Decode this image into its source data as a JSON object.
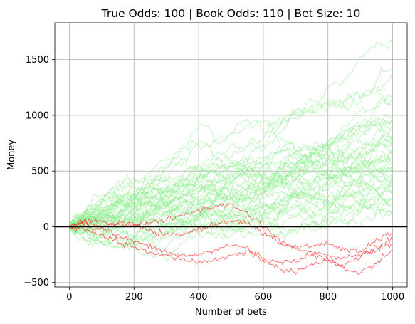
{
  "chart_data": {
    "type": "line",
    "title": "True Odds: 100 | Book Odds: 110 | Bet Size: 10",
    "xlabel": "Number of bets",
    "ylabel": "Money",
    "xlim": [
      -45,
      1045
    ],
    "ylim": [
      -540,
      1830
    ],
    "xticks": [
      0,
      200,
      400,
      600,
      800,
      1000
    ],
    "yticks": [
      -500,
      0,
      500,
      1000,
      1500
    ],
    "grid": true,
    "reference_line": {
      "y": 0,
      "color": "#000000"
    },
    "colors": {
      "profit": "#90ee90",
      "loss": "#ff0000"
    },
    "series_groups": [
      {
        "name": "",
        "color": "#90ee90",
        "count": 45,
        "final_values": [
          1700,
          1420,
          1330,
          1210,
          1150,
          1110,
          1000,
          960,
          930,
          900,
          860,
          830,
          800,
          790,
          770,
          750,
          720,
          700,
          680,
          650,
          630,
          600,
          580,
          560,
          540,
          520,
          500,
          480,
          460,
          440,
          420,
          400,
          380,
          350,
          330,
          300,
          280,
          260,
          240,
          220,
          200,
          180,
          160,
          150,
          120
        ]
      },
      {
        "name": "",
        "color": "#ff0000",
        "count": 4,
        "final_values": [
          -50,
          -90,
          -160,
          -210
        ]
      }
    ],
    "red_series": [
      {
        "x": [
          0,
          40,
          80,
          120,
          160,
          200,
          250,
          300,
          350,
          400,
          450,
          500,
          550,
          600,
          650,
          700,
          750,
          800,
          850,
          900,
          950,
          1000
        ],
        "y": [
          0,
          50,
          20,
          -40,
          -90,
          -130,
          -180,
          -230,
          -260,
          -250,
          -210,
          -160,
          -190,
          -280,
          -330,
          -300,
          -250,
          -300,
          -350,
          -260,
          -180,
          -160
        ]
      },
      {
        "x": [
          0,
          40,
          80,
          120,
          160,
          200,
          250,
          300,
          350,
          400,
          450,
          500,
          550,
          600,
          650,
          700,
          750,
          800,
          850,
          900,
          950,
          1000
        ],
        "y": [
          0,
          40,
          60,
          30,
          10,
          20,
          40,
          60,
          100,
          150,
          180,
          200,
          120,
          10,
          -120,
          -190,
          -170,
          -150,
          -200,
          -230,
          -120,
          -50
        ]
      },
      {
        "x": [
          0,
          40,
          80,
          120,
          160,
          200,
          250,
          300,
          350,
          400,
          450,
          500,
          550,
          600,
          650,
          700,
          750,
          800,
          850,
          900,
          950,
          1000
        ],
        "y": [
          0,
          20,
          -20,
          10,
          40,
          20,
          -40,
          -80,
          -70,
          -20,
          20,
          60,
          30,
          -60,
          -140,
          -200,
          -230,
          -260,
          -280,
          -250,
          -210,
          -90
        ]
      },
      {
        "x": [
          0,
          40,
          80,
          120,
          160,
          200,
          250,
          300,
          350,
          400,
          450,
          500,
          550,
          600,
          650,
          700,
          750,
          800,
          850,
          900,
          950,
          1000
        ],
        "y": [
          0,
          -20,
          -60,
          -100,
          -150,
          -180,
          -240,
          -260,
          -290,
          -320,
          -300,
          -260,
          -220,
          -300,
          -380,
          -400,
          -340,
          -300,
          -380,
          -420,
          -330,
          -210
        ]
      }
    ]
  }
}
